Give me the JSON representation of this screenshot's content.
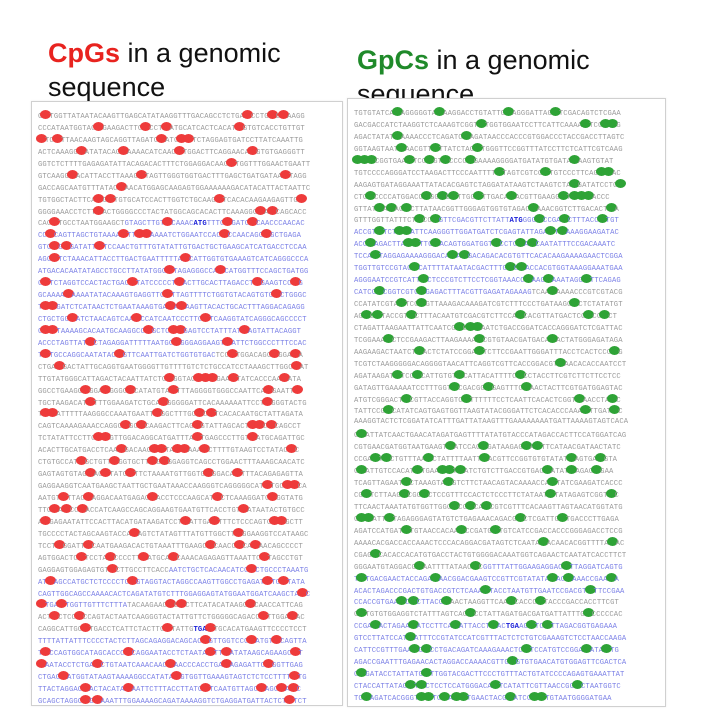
{
  "left": {
    "highlight": "CpGs",
    "rest_line1": " in a genomic",
    "line2": "sequence",
    "highlight_color": "#e8231f",
    "dot_color": "#ee3b3b",
    "start_codon": "ATG",
    "stop_codon": "TGA"
  },
  "right": {
    "highlight": "GpCs",
    "rest_line1": " in a genomic",
    "line2": "sequence",
    "highlight_color": "#1f8a2a",
    "dot_color": "#2ea336",
    "start_codon": "ATG",
    "stop_codon": "TGA"
  },
  "colors": {
    "grey_text": "#9a9a9a",
    "blue_text": "#7b80e6",
    "codon": "#1b20d8"
  }
}
